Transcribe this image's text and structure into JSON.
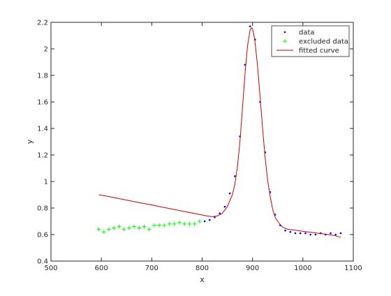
{
  "chart_data": {
    "type": "scatter",
    "title": "",
    "xlabel": "x",
    "ylabel": "y",
    "xlim": [
      500,
      1100
    ],
    "ylim": [
      0.4,
      2.2
    ],
    "x_ticks": [
      500,
      600,
      700,
      800,
      900,
      1000,
      1100
    ],
    "y_ticks": [
      0.4,
      0.6,
      0.8,
      1.0,
      1.2,
      1.4,
      1.6,
      1.8,
      2.0,
      2.2
    ],
    "x_tick_labels": [
      "500",
      "600",
      "700",
      "800",
      "900",
      "1000",
      "1100"
    ],
    "y_tick_labels": [
      "0.4",
      "0.6",
      "0.8",
      "1",
      "1.2",
      "1.4",
      "1.6",
      "1.8",
      "2",
      "2.2"
    ],
    "grid": false,
    "legend_position": "top-right",
    "series": [
      {
        "name": "data",
        "kind": "points",
        "marker": "dot",
        "color": "#0000ff",
        "x": [
          805,
          815,
          825,
          835,
          845,
          855,
          865,
          875,
          885,
          895,
          905,
          915,
          925,
          935,
          945,
          955,
          965,
          975,
          985,
          995,
          1005,
          1015,
          1025,
          1035,
          1045,
          1055,
          1065,
          1075
        ],
        "y": [
          0.7,
          0.71,
          0.73,
          0.76,
          0.81,
          0.91,
          1.04,
          1.34,
          1.88,
          2.17,
          2.07,
          1.6,
          1.22,
          0.92,
          0.75,
          0.67,
          0.63,
          0.62,
          0.61,
          0.61,
          0.61,
          0.6,
          0.6,
          0.61,
          0.6,
          0.61,
          0.6,
          0.61
        ]
      },
      {
        "name": "excluded data",
        "kind": "points",
        "marker": "plus",
        "color": "#00ff00",
        "x": [
          595,
          605,
          615,
          625,
          635,
          645,
          655,
          665,
          675,
          685,
          695,
          705,
          715,
          725,
          735,
          745,
          755,
          765,
          775,
          785,
          795
        ],
        "y": [
          0.64,
          0.62,
          0.64,
          0.65,
          0.66,
          0.64,
          0.65,
          0.66,
          0.65,
          0.66,
          0.64,
          0.67,
          0.67,
          0.67,
          0.68,
          0.68,
          0.69,
          0.68,
          0.68,
          0.68,
          0.7
        ]
      },
      {
        "name": "fitted curve",
        "kind": "line",
        "color": "#cc0000",
        "x": [
          595,
          610,
          630,
          650,
          670,
          690,
          710,
          730,
          750,
          770,
          790,
          810,
          820,
          830,
          840,
          850,
          860,
          865,
          870,
          875,
          880,
          885,
          890,
          895,
          898,
          900,
          903,
          905,
          910,
          915,
          920,
          925,
          930,
          935,
          940,
          945,
          950,
          955,
          960,
          970,
          980,
          990,
          1000,
          1010,
          1020,
          1030,
          1040,
          1050,
          1060,
          1075
        ],
        "y": [
          0.9,
          0.89,
          0.875,
          0.86,
          0.845,
          0.83,
          0.815,
          0.8,
          0.785,
          0.77,
          0.755,
          0.74,
          0.735,
          0.74,
          0.76,
          0.81,
          0.9,
          0.98,
          1.11,
          1.3,
          1.55,
          1.81,
          2.02,
          2.14,
          2.16,
          2.15,
          2.1,
          2.05,
          1.87,
          1.64,
          1.4,
          1.18,
          1.01,
          0.89,
          0.79,
          0.73,
          0.7,
          0.675,
          0.655,
          0.64,
          0.635,
          0.63,
          0.625,
          0.62,
          0.615,
          0.61,
          0.605,
          0.6,
          0.595,
          0.58
        ]
      }
    ]
  }
}
